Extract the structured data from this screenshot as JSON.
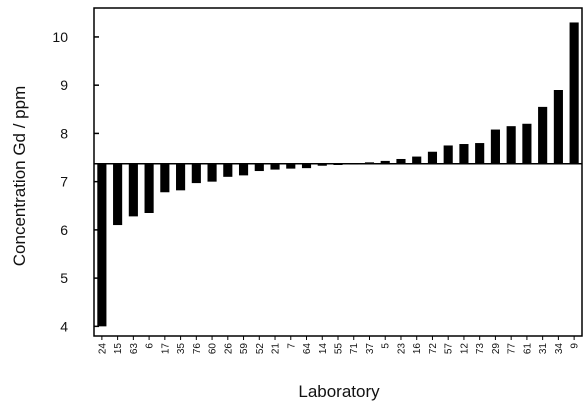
{
  "chart_data": {
    "type": "bar",
    "title": "",
    "xlabel": "Laboratory",
    "ylabel": "Concentration Gd / ppm",
    "ylim": [
      3.8,
      10.6
    ],
    "yticks": [
      4,
      5,
      6,
      7,
      8,
      9,
      10
    ],
    "baseline": 7.37,
    "grid": false,
    "colors": {
      "bar": "#000000",
      "axis": "#000000",
      "background": "#ffffff"
    },
    "categories": [
      "24",
      "15",
      "63",
      "6",
      "17",
      "35",
      "76",
      "60",
      "26",
      "59",
      "52",
      "21",
      "7",
      "64",
      "14",
      "55",
      "71",
      "37",
      "5",
      "23",
      "16",
      "72",
      "57",
      "12",
      "73",
      "29",
      "77",
      "61",
      "31",
      "34",
      "9"
    ],
    "values": [
      4.0,
      6.1,
      6.28,
      6.35,
      6.78,
      6.82,
      6.97,
      7.0,
      7.1,
      7.13,
      7.22,
      7.25,
      7.27,
      7.28,
      7.33,
      7.35,
      7.38,
      7.4,
      7.43,
      7.47,
      7.52,
      7.62,
      7.75,
      7.78,
      7.8,
      8.08,
      8.15,
      8.2,
      8.55,
      8.9,
      10.3
    ]
  }
}
